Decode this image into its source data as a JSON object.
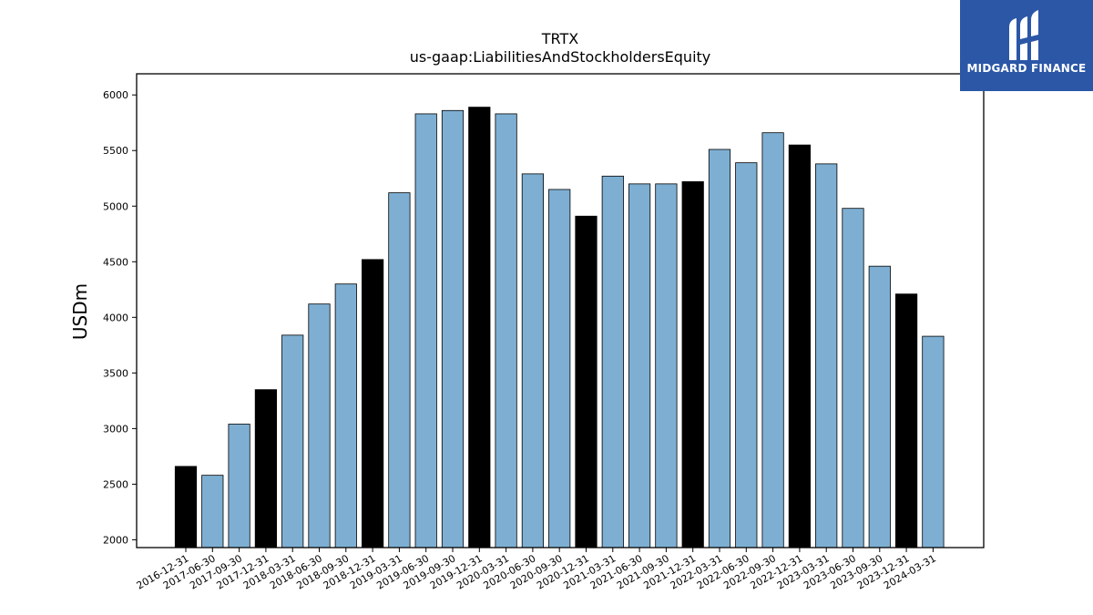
{
  "chart_data": {
    "type": "bar",
    "title": "TRTX",
    "subtitle": "us-gaap:LiabilitiesAndStockholdersEquity",
    "xlabel": "",
    "ylabel": "USDm",
    "ylim": [
      1930,
      6190
    ],
    "yticks": [
      2000,
      2500,
      3000,
      3500,
      4000,
      4500,
      5000,
      5500,
      6000
    ],
    "grid": false,
    "categories": [
      "2016-12-31",
      "2017-06-30",
      "2017-09-30",
      "2017-12-31",
      "2018-03-31",
      "2018-06-30",
      "2018-09-30",
      "2018-12-31",
      "2019-03-31",
      "2019-06-30",
      "2019-09-30",
      "2019-12-31",
      "2020-03-31",
      "2020-06-30",
      "2020-09-30",
      "2020-12-31",
      "2021-03-31",
      "2021-06-30",
      "2021-09-30",
      "2021-12-31",
      "2022-03-31",
      "2022-06-30",
      "2022-09-30",
      "2022-12-31",
      "2023-03-31",
      "2023-06-30",
      "2023-09-30",
      "2023-12-31",
      "2024-03-31"
    ],
    "values": [
      2660,
      2580,
      3040,
      3350,
      3840,
      4120,
      4300,
      4520,
      5120,
      5830,
      5860,
      5890,
      5830,
      5290,
      5150,
      4910,
      5270,
      5200,
      5200,
      5220,
      5510,
      5390,
      5660,
      5550,
      5380,
      4980,
      4460,
      4210,
      3830
    ],
    "year_end": [
      true,
      false,
      false,
      true,
      false,
      false,
      false,
      true,
      false,
      false,
      false,
      true,
      false,
      false,
      false,
      true,
      false,
      false,
      false,
      true,
      false,
      false,
      false,
      true,
      false,
      false,
      false,
      true,
      false
    ],
    "colors": {
      "quarter": "#7eafd3",
      "year_end": "#000000",
      "edge": "#000000"
    }
  },
  "logo": {
    "text": "MIDGARD FINANCE",
    "background": "#2b57a6"
  }
}
